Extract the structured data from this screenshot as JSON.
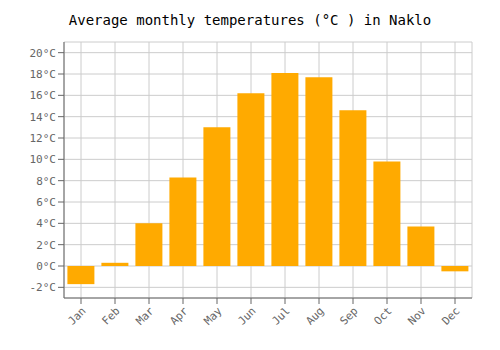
{
  "chart_data": {
    "type": "bar",
    "title": "Average monthly temperatures (°C ) in Naklo",
    "categories": [
      "Jan",
      "Feb",
      "Mar",
      "Apr",
      "May",
      "Jun",
      "Jul",
      "Aug",
      "Sep",
      "Oct",
      "Nov",
      "Dec"
    ],
    "values": [
      -1.7,
      0.3,
      4.0,
      8.3,
      13.0,
      16.2,
      18.1,
      17.7,
      14.6,
      9.8,
      3.7,
      -0.5
    ],
    "color": "#FFAA00",
    "ylim": [
      -3.0,
      21.0
    ],
    "yticks": [
      {
        "value": -2,
        "label": "-2°C"
      },
      {
        "value": 0,
        "label": "0°C"
      },
      {
        "value": 2,
        "label": "2°C"
      },
      {
        "value": 4,
        "label": "4°C"
      },
      {
        "value": 6,
        "label": "6°C"
      },
      {
        "value": 8,
        "label": "8°C"
      },
      {
        "value": 10,
        "label": "10°C"
      },
      {
        "value": 12,
        "label": "12°C"
      },
      {
        "value": 14,
        "label": "14°C"
      },
      {
        "value": 16,
        "label": "16°C"
      },
      {
        "value": 18,
        "label": "18°C"
      },
      {
        "value": 20,
        "label": "20°C"
      }
    ],
    "grid": true
  }
}
